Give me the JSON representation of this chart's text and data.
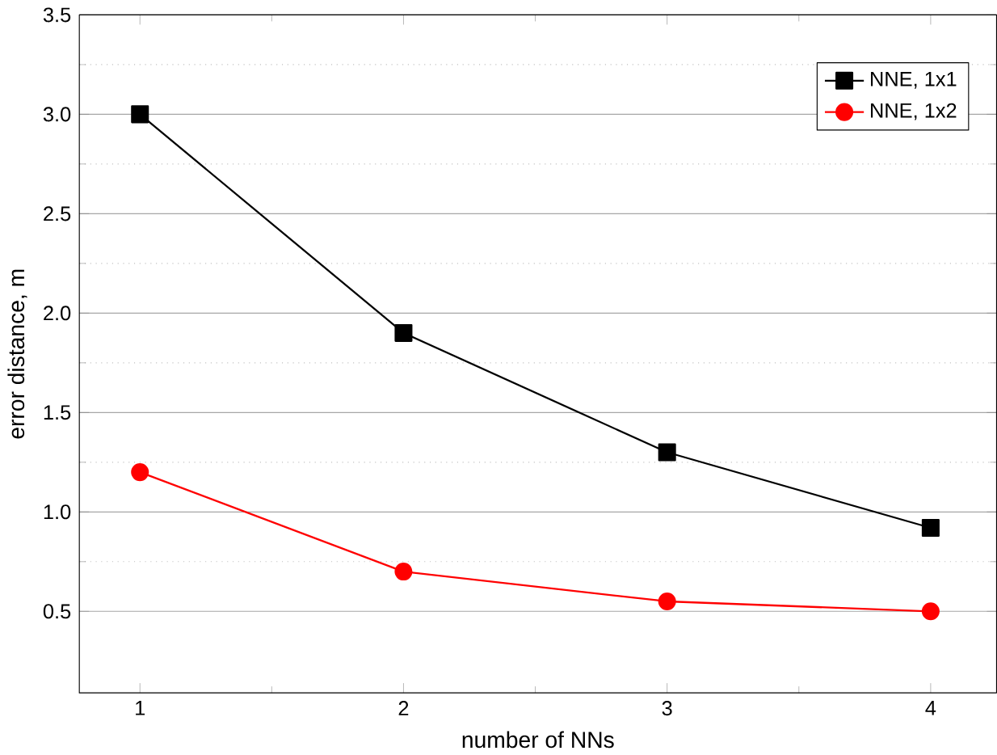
{
  "chart_data": {
    "type": "line",
    "xlabel": "number of NNs",
    "ylabel": "error distance, m",
    "x": [
      1,
      2,
      3,
      4
    ],
    "series": [
      {
        "name": "NNE, 1x1",
        "color": "#000000",
        "marker": "square",
        "values": [
          3.0,
          1.9,
          1.3,
          0.92
        ]
      },
      {
        "name": "NNE, 1x2",
        "color": "#ff0000",
        "marker": "circle",
        "values": [
          1.2,
          0.7,
          0.55,
          0.5
        ]
      }
    ],
    "xlim": [
      0.77,
      4.25
    ],
    "ylim": [
      0.09,
      3.5
    ],
    "xticks": [
      1,
      2,
      3,
      4
    ],
    "yticks": [
      0.5,
      {
        "value": 1,
        "label": "1.0"
      },
      1.5,
      {
        "value": 2,
        "label": "2.0"
      },
      2.5,
      {
        "value": 3,
        "label": "3.0"
      },
      3.5
    ],
    "grid": "y",
    "legend": "top right",
    "line_style": "solid"
  }
}
